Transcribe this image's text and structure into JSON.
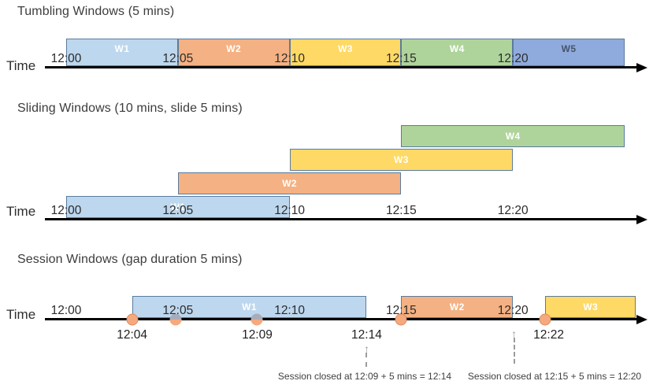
{
  "diagram": {
    "icons": {
      "arrow_up": "↑"
    },
    "colors": {
      "window_border": "#5b7b9d",
      "axis": "#000000",
      "event_dot": "#f5a97e",
      "event_dot_border": "#e08b5f",
      "event_dot_covered_top": "#a9acb8",
      "dashed_arrow": "#9b9b9b"
    },
    "sections": [
      {
        "id": "tumbling",
        "title": "Tumbling Windows (5 mins)",
        "axis_label": "Time",
        "ticks": [
          {
            "t": 0,
            "label": "12:00"
          },
          {
            "t": 5,
            "label": "12:05"
          },
          {
            "t": 10,
            "label": "12:10"
          },
          {
            "t": 15,
            "label": "12:15"
          },
          {
            "t": 20,
            "label": "12:20"
          }
        ],
        "windows": [
          {
            "label": "W1",
            "start": 0,
            "end": 5,
            "fill": "#bdd7ee",
            "label_color": "#ffffff"
          },
          {
            "label": "W2",
            "start": 5,
            "end": 10,
            "fill": "#f4b183",
            "label_color": "#ffffff"
          },
          {
            "label": "W3",
            "start": 10,
            "end": 15,
            "fill": "#ffd966",
            "label_color": "#ffffff"
          },
          {
            "label": "W4",
            "start": 15,
            "end": 20,
            "fill": "#afd49b",
            "label_color": "#ffffff"
          },
          {
            "label": "W5",
            "start": 20,
            "end": 25,
            "fill": "#8faadc",
            "label_color": "#44546a"
          }
        ]
      },
      {
        "id": "sliding",
        "title": "Sliding Windows (10 mins, slide 5 mins)",
        "axis_label": "Time",
        "ticks": [
          {
            "t": 0,
            "label": "12:00"
          },
          {
            "t": 5,
            "label": "12:05"
          },
          {
            "t": 10,
            "label": "12:10"
          },
          {
            "t": 15,
            "label": "12:15"
          },
          {
            "t": 20,
            "label": "12:20"
          }
        ],
        "windows": [
          {
            "label": "W1",
            "start": 0,
            "end": 10,
            "row": 0,
            "fill": "#bdd7ee",
            "label_color": "#ffffff"
          },
          {
            "label": "W2",
            "start": 5,
            "end": 15,
            "row": 1,
            "fill": "#f4b183",
            "label_color": "#ffffff"
          },
          {
            "label": "W3",
            "start": 10,
            "end": 20,
            "row": 2,
            "fill": "#ffd966",
            "label_color": "#ffffff"
          },
          {
            "label": "W4",
            "start": 15,
            "end": 25,
            "row": 3,
            "fill": "#afd49b",
            "label_color": "#ffffff"
          }
        ]
      },
      {
        "id": "session",
        "title": "Session Windows (gap duration 5 mins)",
        "axis_label": "Time",
        "ticks": [
          {
            "t": 0,
            "label": "12:00"
          },
          {
            "t": 5,
            "label": "12:05"
          },
          {
            "t": 10,
            "label": "12:10"
          },
          {
            "t": 15,
            "label": "12:15"
          },
          {
            "t": 20,
            "label": "12:20"
          }
        ],
        "windows": [
          {
            "label": "W1",
            "start": 2.95,
            "end": 13.45,
            "fill": "#bdd7ee",
            "label_color": "#ffffff"
          },
          {
            "label": "W2",
            "start": 15.0,
            "end": 20.0,
            "fill": "#f4b183",
            "label_color": "#ffffff"
          },
          {
            "label": "W3",
            "start": 21.45,
            "end": 25.5,
            "fill": "#ffd966",
            "label_color": "#ffffff"
          }
        ],
        "events": [
          {
            "t": 2.95
          },
          {
            "t": 4.9
          },
          {
            "t": 8.55
          },
          {
            "t": 15.0
          },
          {
            "t": 21.45
          }
        ],
        "event_labels": [
          {
            "t": 2.95,
            "label": "12:04"
          },
          {
            "t": 8.55,
            "label": "12:09"
          },
          {
            "t": 13.45,
            "label": "12:14"
          },
          {
            "t": 21.6,
            "label": "12:22"
          }
        ],
        "annotations": [
          {
            "text": "Session closed at 12:09 + 5 mins = 12:14",
            "arrow_t": 13.45
          },
          {
            "text": "Session closed at 12:15 + 5 mins = 12:20",
            "arrow_t": 20.05
          }
        ]
      }
    ]
  }
}
